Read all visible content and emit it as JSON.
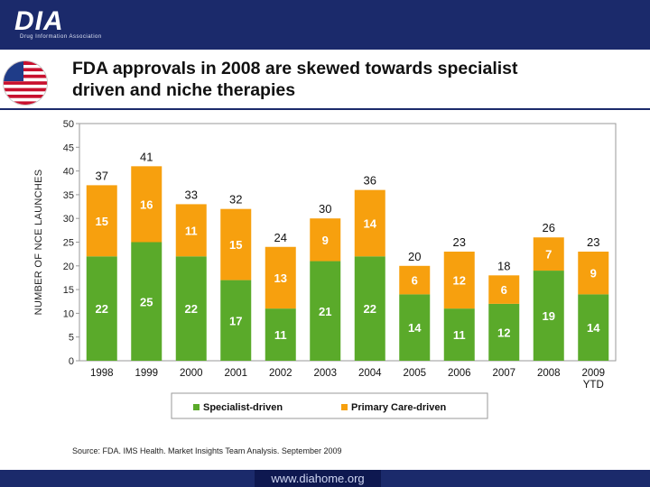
{
  "header": {
    "logo_text": "DIA",
    "logo_subtitle": "Drug Information Association"
  },
  "slide": {
    "title_line1": "FDA approvals in 2008 are skewed towards specialist",
    "title_line2": "driven and niche therapies",
    "source": "Source: FDA. IMS Health. Market Insights Team Analysis. September 2009",
    "footer_url": "www.diahome.org"
  },
  "colors": {
    "specialist": "#5aaa2a",
    "primary_care": "#f7a00e",
    "brand": "#1b2a6b"
  },
  "chart_data": {
    "type": "bar",
    "stacked": true,
    "ylabel": "NUMBER OF NCE LAUNCHES",
    "ylim": [
      0,
      50
    ],
    "yticks": [
      0,
      5,
      10,
      15,
      20,
      25,
      30,
      35,
      40,
      45,
      50
    ],
    "grid": false,
    "legend_position": "bottom",
    "categories": [
      "1998",
      "1999",
      "2000",
      "2001",
      "2002",
      "2003",
      "2004",
      "2005",
      "2006",
      "2007",
      "2008",
      "2009 YTD"
    ],
    "category_lines": [
      [
        "1998"
      ],
      [
        "1999"
      ],
      [
        "2000"
      ],
      [
        "2001"
      ],
      [
        "2002"
      ],
      [
        "2003"
      ],
      [
        "2004"
      ],
      [
        "2005"
      ],
      [
        "2006"
      ],
      [
        "2007"
      ],
      [
        "2008"
      ],
      [
        "2009",
        "YTD"
      ]
    ],
    "series": [
      {
        "name": "Specialist-driven",
        "values": [
          22,
          25,
          22,
          17,
          11,
          21,
          22,
          14,
          11,
          12,
          19,
          14
        ]
      },
      {
        "name": "Primary Care-driven",
        "values": [
          15,
          16,
          11,
          15,
          13,
          9,
          14,
          6,
          12,
          6,
          7,
          9
        ]
      }
    ],
    "totals": [
      37,
      41,
      33,
      32,
      24,
      30,
      36,
      20,
      23,
      18,
      26,
      23
    ]
  }
}
